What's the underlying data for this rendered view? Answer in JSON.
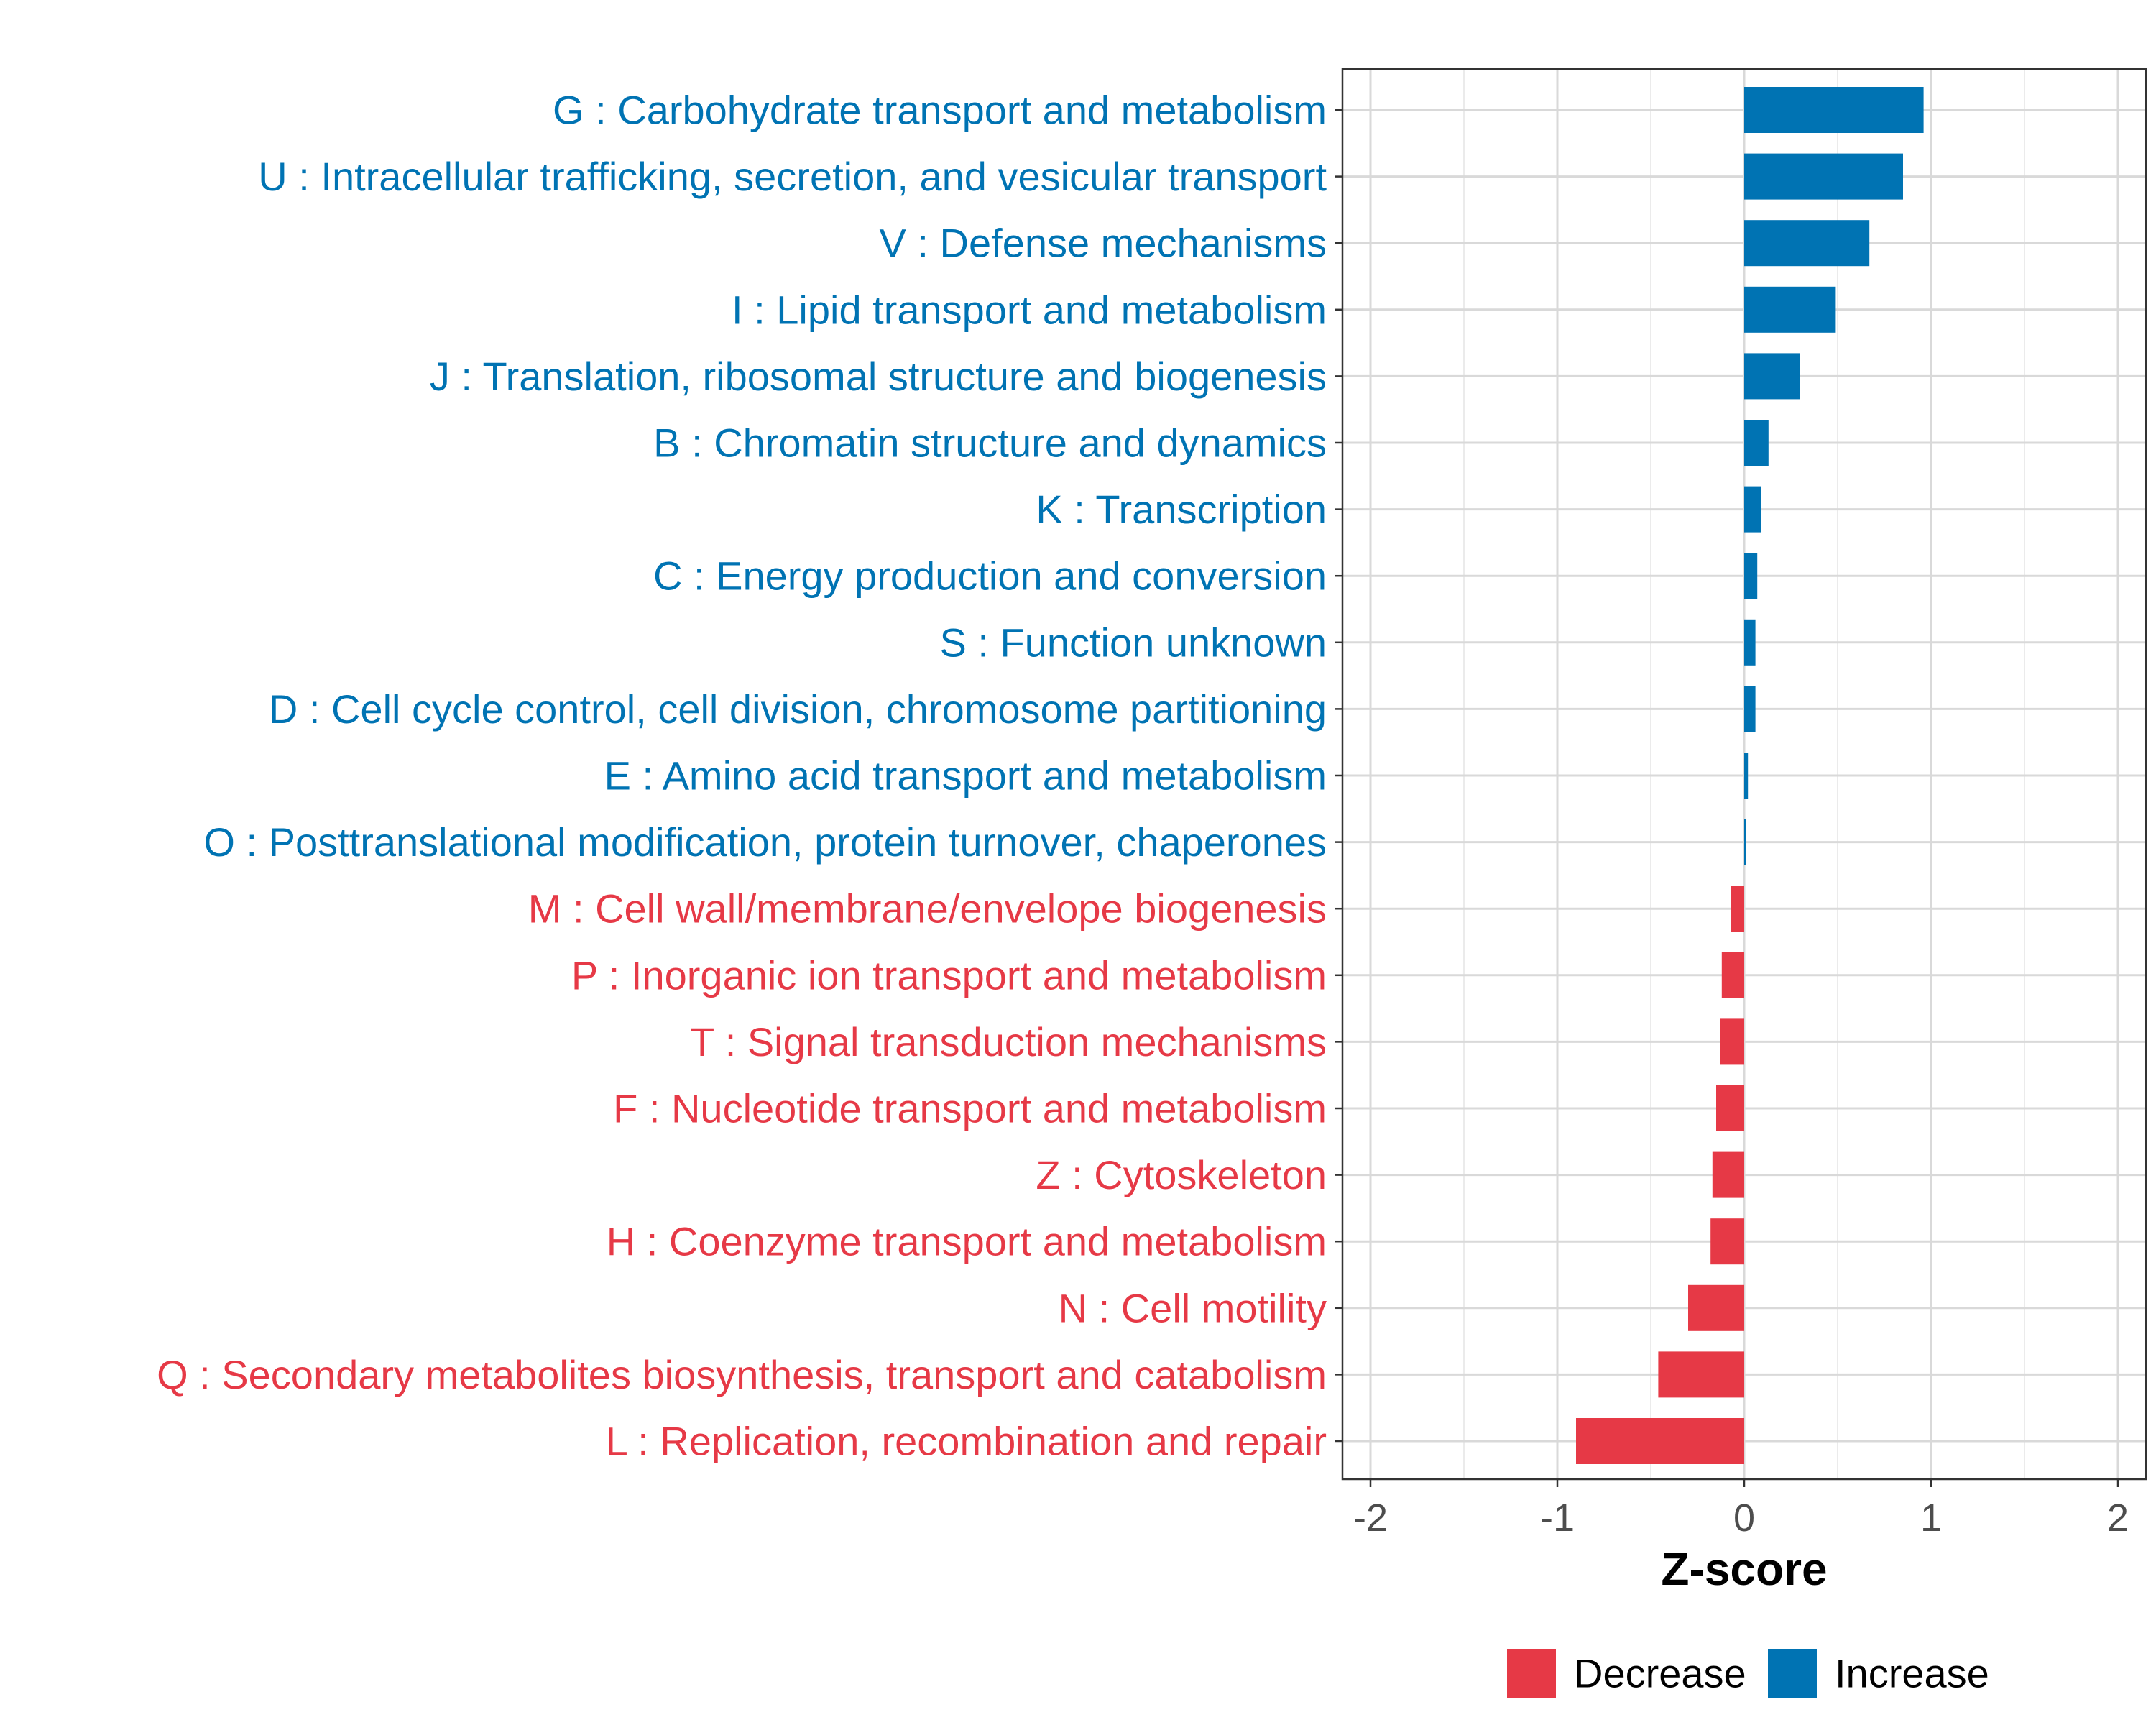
{
  "chart_data": {
    "type": "bar",
    "orientation": "horizontal",
    "title": "",
    "xlabel": "Z-score",
    "ylabel": "",
    "xlim": [
      -2.15,
      2.15
    ],
    "xticks": [
      -2,
      -1,
      0,
      1,
      2
    ],
    "xtick_labels": [
      "-2",
      "-1",
      "0",
      "1",
      "2"
    ],
    "grid": true,
    "legend_position": "bottom",
    "colors": {
      "Increase": "#0073b3",
      "Decrease": "#e63946"
    },
    "legend": [
      {
        "label": "Decrease",
        "color": "#e63946"
      },
      {
        "label": "Increase",
        "color": "#0073b3"
      }
    ],
    "categories": [
      "G : Carbohydrate transport and metabolism",
      "U : Intracellular trafficking, secretion, and vesicular transport",
      "V : Defense mechanisms",
      "I : Lipid transport and metabolism",
      "J : Translation, ribosomal structure and biogenesis",
      "B : Chromatin structure and dynamics",
      "K : Transcription",
      "C : Energy production and conversion",
      "S : Function unknown",
      "D : Cell cycle control, cell division, chromosome partitioning",
      "E : Amino acid transport and metabolism",
      "O : Posttranslational modification, protein turnover, chaperones",
      "M : Cell wall/membrane/envelope biogenesis",
      "P : Inorganic ion transport and metabolism",
      "T : Signal transduction mechanisms",
      "F : Nucleotide transport and metabolism",
      "Z : Cytoskeleton",
      "H : Coenzyme transport and metabolism",
      "N : Cell motility",
      "Q : Secondary metabolites biosynthesis, transport and catabolism",
      "L : Replication, recombination and repair"
    ],
    "values": [
      0.96,
      0.85,
      0.67,
      0.49,
      0.3,
      0.13,
      0.09,
      0.07,
      0.06,
      0.06,
      0.02,
      0.005,
      -0.07,
      -0.12,
      -0.13,
      -0.15,
      -0.17,
      -0.18,
      -0.3,
      -0.46,
      -0.9
    ],
    "groups": [
      "Increase",
      "Increase",
      "Increase",
      "Increase",
      "Increase",
      "Increase",
      "Increase",
      "Increase",
      "Increase",
      "Increase",
      "Increase",
      "Increase",
      "Decrease",
      "Decrease",
      "Decrease",
      "Decrease",
      "Decrease",
      "Decrease",
      "Decrease",
      "Decrease",
      "Decrease"
    ]
  }
}
